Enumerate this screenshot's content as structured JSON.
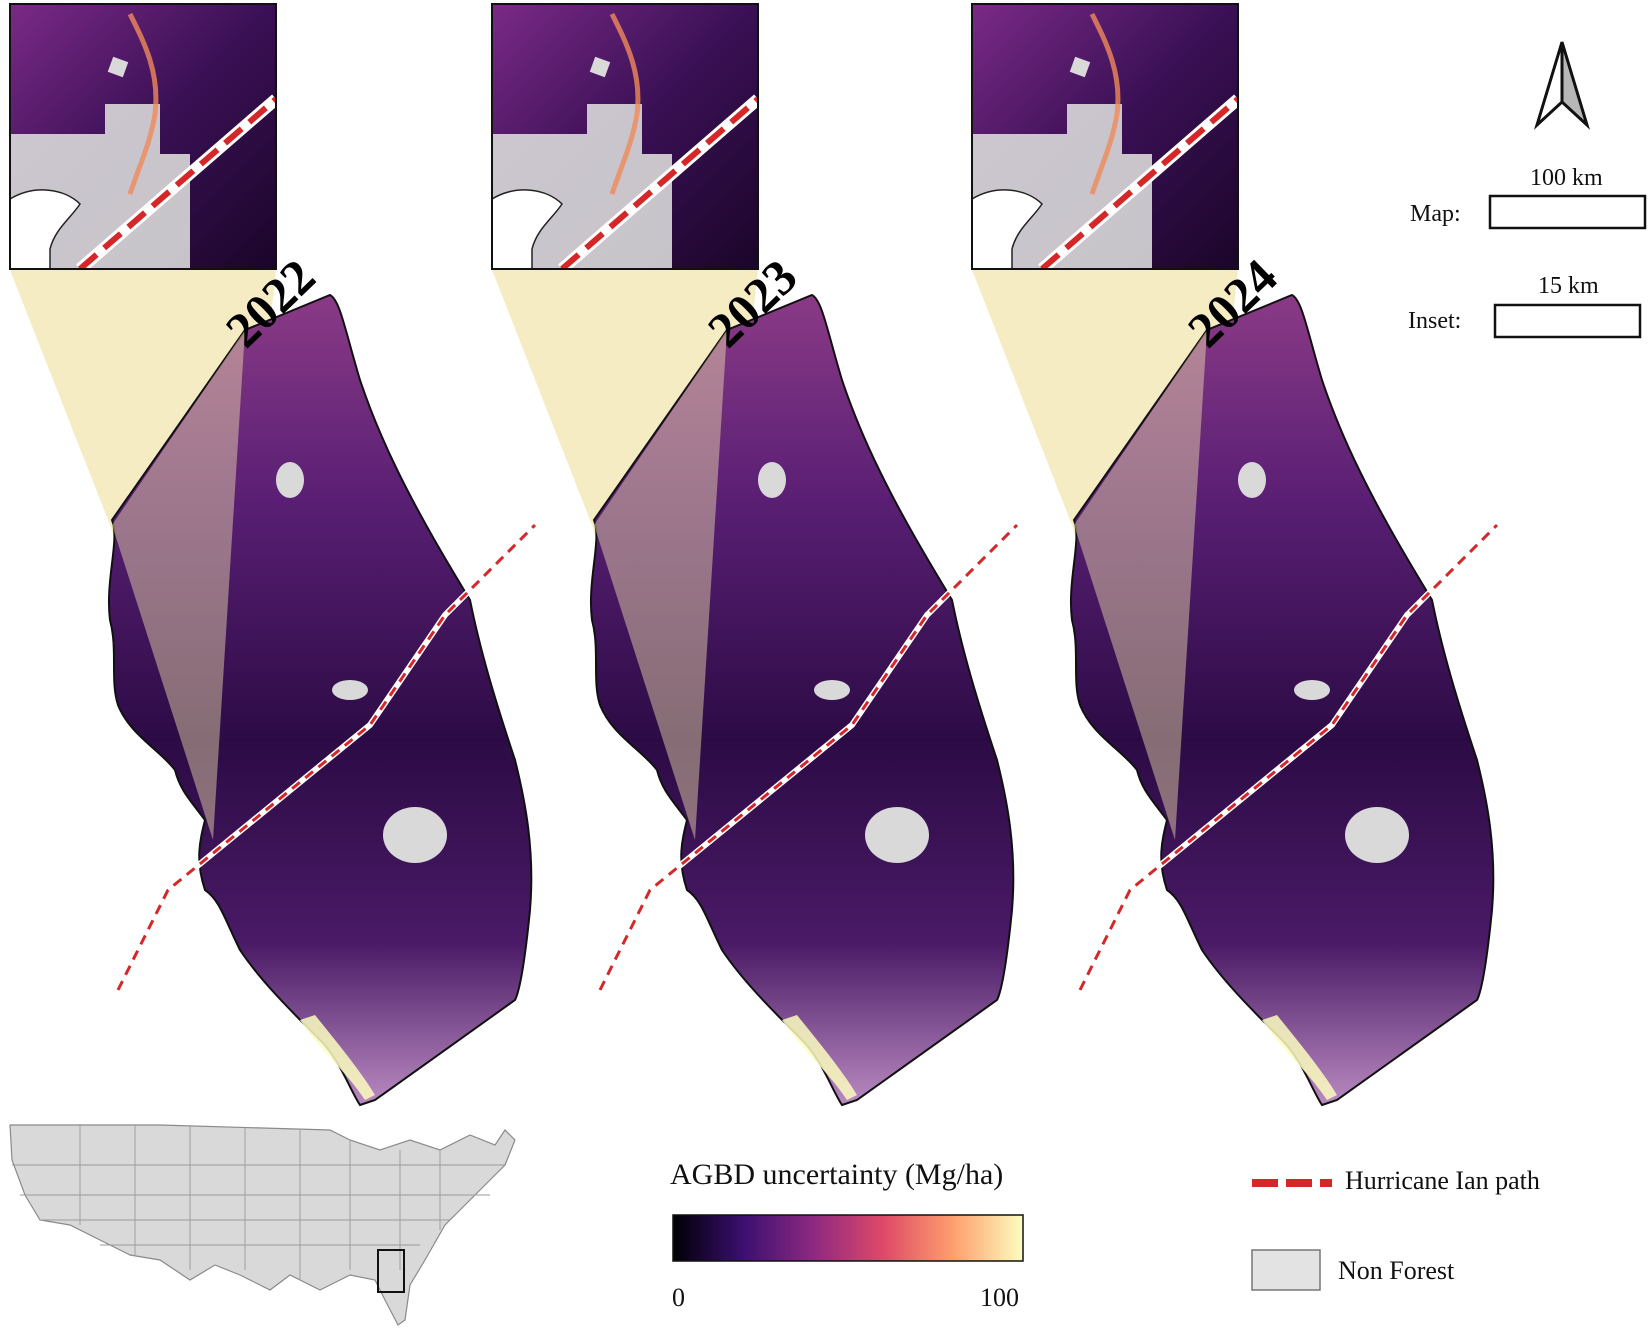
{
  "panels": [
    {
      "year": "2022"
    },
    {
      "year": "2023"
    },
    {
      "year": "2024"
    }
  ],
  "scale": {
    "map_label": "Map:",
    "map_distance": "100 km",
    "inset_label": "Inset:",
    "inset_distance": "15 km"
  },
  "colorbar": {
    "title": "AGBD uncertainty (Mg/ha)",
    "min_label": "0",
    "max_label": "100",
    "min_value": 0,
    "max_value": 100,
    "colormap": "magma",
    "stops": [
      "#000004",
      "#3b0f70",
      "#8c2981",
      "#de4968",
      "#fe9f6d",
      "#fcfdbf"
    ]
  },
  "legend": {
    "hurricane_label": "Hurricane Ian path",
    "hurricane_color": "#d62728",
    "nonforest_label": "Non Forest",
    "nonforest_color": "#d9d9d9"
  },
  "colors": {
    "zoom_fan": "#f3e5b0",
    "map_dark": "#2a0a3d",
    "map_purple": "#6d2a8c",
    "map_orange": "#e4705a"
  }
}
